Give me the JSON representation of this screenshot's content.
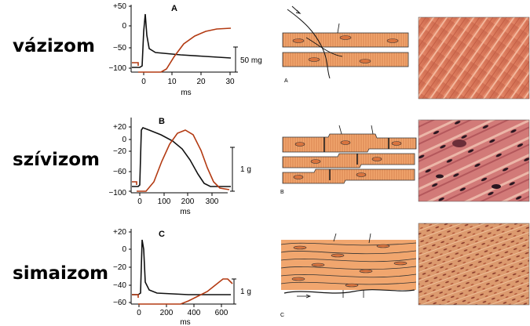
{
  "rows": [
    {
      "label": "vázizom",
      "panel": "A",
      "yticks": [
        "+50",
        "0",
        "−50",
        "−100"
      ],
      "xticks": [
        "0",
        "10",
        "20",
        "30"
      ],
      "xunit": "ms",
      "scale": "50 mg",
      "hist_letter": "A"
    },
    {
      "label": "szívizom",
      "panel": "B",
      "yticks": [
        "+20",
        "0",
        "−20",
        "−60",
        "−100"
      ],
      "xticks": [
        "0",
        "100",
        "200",
        "300"
      ],
      "xunit": "ms",
      "scale": "1 g",
      "hist_letter": "B"
    },
    {
      "label": "simaizom",
      "panel": "C",
      "yticks": [
        "+20",
        "0",
        "−20",
        "−40",
        "−60"
      ],
      "xticks": [
        "0",
        "200",
        "400",
        "600"
      ],
      "xunit": "ms",
      "scale": "1 g",
      "hist_letter": "C"
    }
  ],
  "colors": {
    "action_potential": "#111111",
    "contraction": "#b33a12",
    "muscle_fill": "#f1a66e",
    "muscle_stroke": "#333333"
  }
}
